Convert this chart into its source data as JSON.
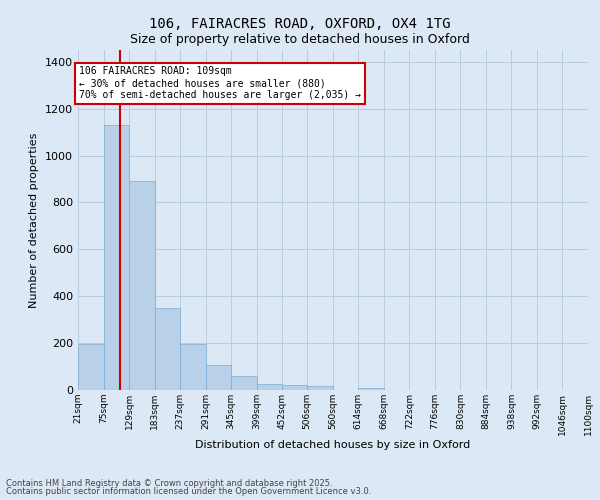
{
  "title1": "106, FAIRACRES ROAD, OXFORD, OX4 1TG",
  "title2": "Size of property relative to detached houses in Oxford",
  "xlabel": "Distribution of detached houses by size in Oxford",
  "ylabel": "Number of detached properties",
  "bar_color": "#b8d0e8",
  "bar_edge_color": "#7aadd4",
  "background_color": "#dce8f5",
  "grid_color": "#b8cce0",
  "vline_x": 109,
  "vline_color": "#cc0000",
  "annotation_text": "106 FAIRACRES ROAD: 109sqm\n← 30% of detached houses are smaller (880)\n70% of semi-detached houses are larger (2,035) →",
  "annotation_box_color": "#ffffff",
  "annotation_border_color": "#cc0000",
  "bins": [
    21,
    75,
    129,
    183,
    237,
    291,
    345,
    399,
    452,
    506,
    560,
    614,
    668,
    722,
    776,
    830,
    884,
    938,
    992,
    1046,
    1100
  ],
  "bin_labels": [
    "21sqm",
    "75sqm",
    "129sqm",
    "183sqm",
    "237sqm",
    "291sqm",
    "345sqm",
    "399sqm",
    "452sqm",
    "506sqm",
    "560sqm",
    "614sqm",
    "668sqm",
    "722sqm",
    "776sqm",
    "830sqm",
    "884sqm",
    "938sqm",
    "992sqm",
    "1046sqm",
    "1100sqm"
  ],
  "bar_heights": [
    195,
    1130,
    890,
    350,
    195,
    105,
    60,
    25,
    22,
    15,
    0,
    8,
    0,
    0,
    0,
    0,
    0,
    0,
    0,
    0
  ],
  "ylim": [
    0,
    1450
  ],
  "yticks": [
    0,
    200,
    400,
    600,
    800,
    1000,
    1200,
    1400
  ],
  "footnote1": "Contains HM Land Registry data © Crown copyright and database right 2025.",
  "footnote2": "Contains public sector information licensed under the Open Government Licence v3.0."
}
